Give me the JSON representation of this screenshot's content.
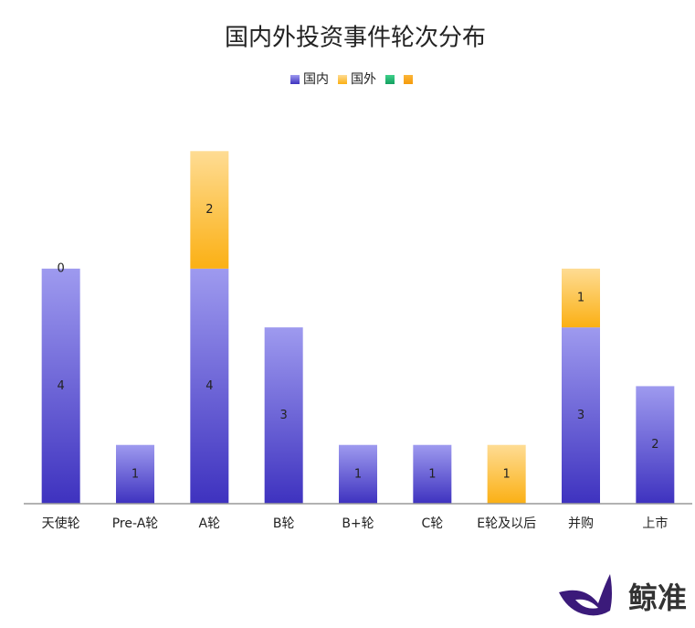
{
  "chart_data": {
    "type": "stacked_bar",
    "title": "国内外投资事件轮次分布",
    "categories": [
      "天使轮",
      "Pre-A轮",
      "A轮",
      "B轮",
      "B+轮",
      "C轮",
      "E轮及以后",
      "并购",
      "上市"
    ],
    "series": [
      {
        "name": "国内",
        "color": "#6c63d9",
        "values": [
          4,
          1,
          4,
          3,
          1,
          1,
          0,
          3,
          2
        ],
        "value_labels": [
          "4",
          "1",
          "4",
          "3",
          "1",
          "1",
          null,
          "3",
          "2"
        ]
      },
      {
        "name": "国外",
        "color": "#fcc44a",
        "values": [
          0,
          0,
          2,
          0,
          0,
          0,
          1,
          1,
          0
        ],
        "value_labels": [
          "0",
          null,
          "2",
          null,
          null,
          null,
          "1",
          "1",
          null
        ]
      },
      {
        "color": "#22b573"
      },
      {
        "color": "#f7a21b"
      }
    ],
    "ylim": [
      0,
      7
    ],
    "legend": "top",
    "watermark": "鲸准"
  }
}
